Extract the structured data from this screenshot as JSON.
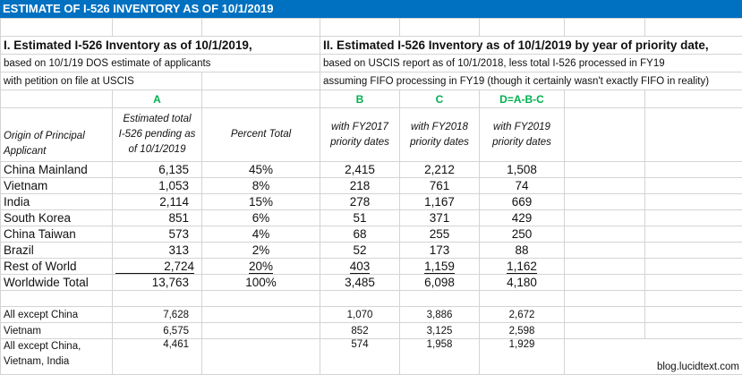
{
  "title": "ESTIMATE OF I-526 INVENTORY AS OF 10/1/2019",
  "section1": {
    "heading": "I. Estimated I-526 Inventory as of 10/1/2019,",
    "line1": "based on 10/1/19 DOS estimate of applicants",
    "line2": "with petition on file at USCIS"
  },
  "section2": {
    "heading": "II. Estimated I-526 Inventory as of 10/1/2019 by year of priority date,",
    "line1": "based on USCIS report as of 10/1/2018, less total I-526 processed in FY19",
    "line2": "assuming FIFO processing in FY19 (though it certainly wasn't exactly FIFO in reality)"
  },
  "column_letters": [
    "A",
    "B",
    "C",
    "D=A-B-C"
  ],
  "column_headers": {
    "origin": "Origin of Principal Applicant",
    "origin_l1": "Origin of Principal",
    "origin_l2": "Applicant",
    "a_l1": "Estimated total",
    "a_l2": "I-526 pending as",
    "a_l3": "of 10/1/2019",
    "pct": "Percent Total",
    "b_l1": "with FY2017",
    "b_l2": "priority dates",
    "c_l1": "with FY2018",
    "c_l2": "priority dates",
    "d_l1": "with FY2019",
    "d_l2": "priority dates"
  },
  "rows": [
    {
      "origin": "China Mainland",
      "a": "6,135",
      "pct": "45%",
      "b": "2,415",
      "c": "2,212",
      "d": "1,508"
    },
    {
      "origin": "Vietnam",
      "a": "1,053",
      "pct": "8%",
      "b": "218",
      "c": "761",
      "d": "74"
    },
    {
      "origin": "India",
      "a": "2,114",
      "pct": "15%",
      "b": "278",
      "c": "1,167",
      "d": "669"
    },
    {
      "origin": "South Korea",
      "a": "851",
      "pct": "6%",
      "b": "51",
      "c": "371",
      "d": "429"
    },
    {
      "origin": "China Taiwan",
      "a": "573",
      "pct": "4%",
      "b": "68",
      "c": "255",
      "d": "250"
    },
    {
      "origin": "Brazil",
      "a": "313",
      "pct": "2%",
      "b": "52",
      "c": "173",
      "d": "88"
    },
    {
      "origin": "Rest of World",
      "a": "2,724",
      "pct": "20%",
      "b": "403",
      "c": "1,159",
      "d": "1,162"
    }
  ],
  "total": {
    "origin": "Worldwide Total",
    "a": "13,763",
    "pct": "100%",
    "b": "3,485",
    "c": "6,098",
    "d": "4,180"
  },
  "subtotals": [
    {
      "origin": "All except China",
      "a": "7,628",
      "b": "1,070",
      "c": "3,886",
      "d": "2,672"
    },
    {
      "origin": "Vietnam",
      "a": "6,575",
      "b": "852",
      "c": "3,125",
      "d": "2,598"
    },
    {
      "origin_l1": "All except China,",
      "origin_l2": "Vietnam, India",
      "a": "4,461",
      "b": "574",
      "c": "1,958",
      "d": "1,929"
    }
  ],
  "watermark": "blog.lucidtext.com",
  "colors": {
    "title_bar": "#0070c0",
    "letters": "#00b050",
    "grid": "#d4d4d4"
  }
}
